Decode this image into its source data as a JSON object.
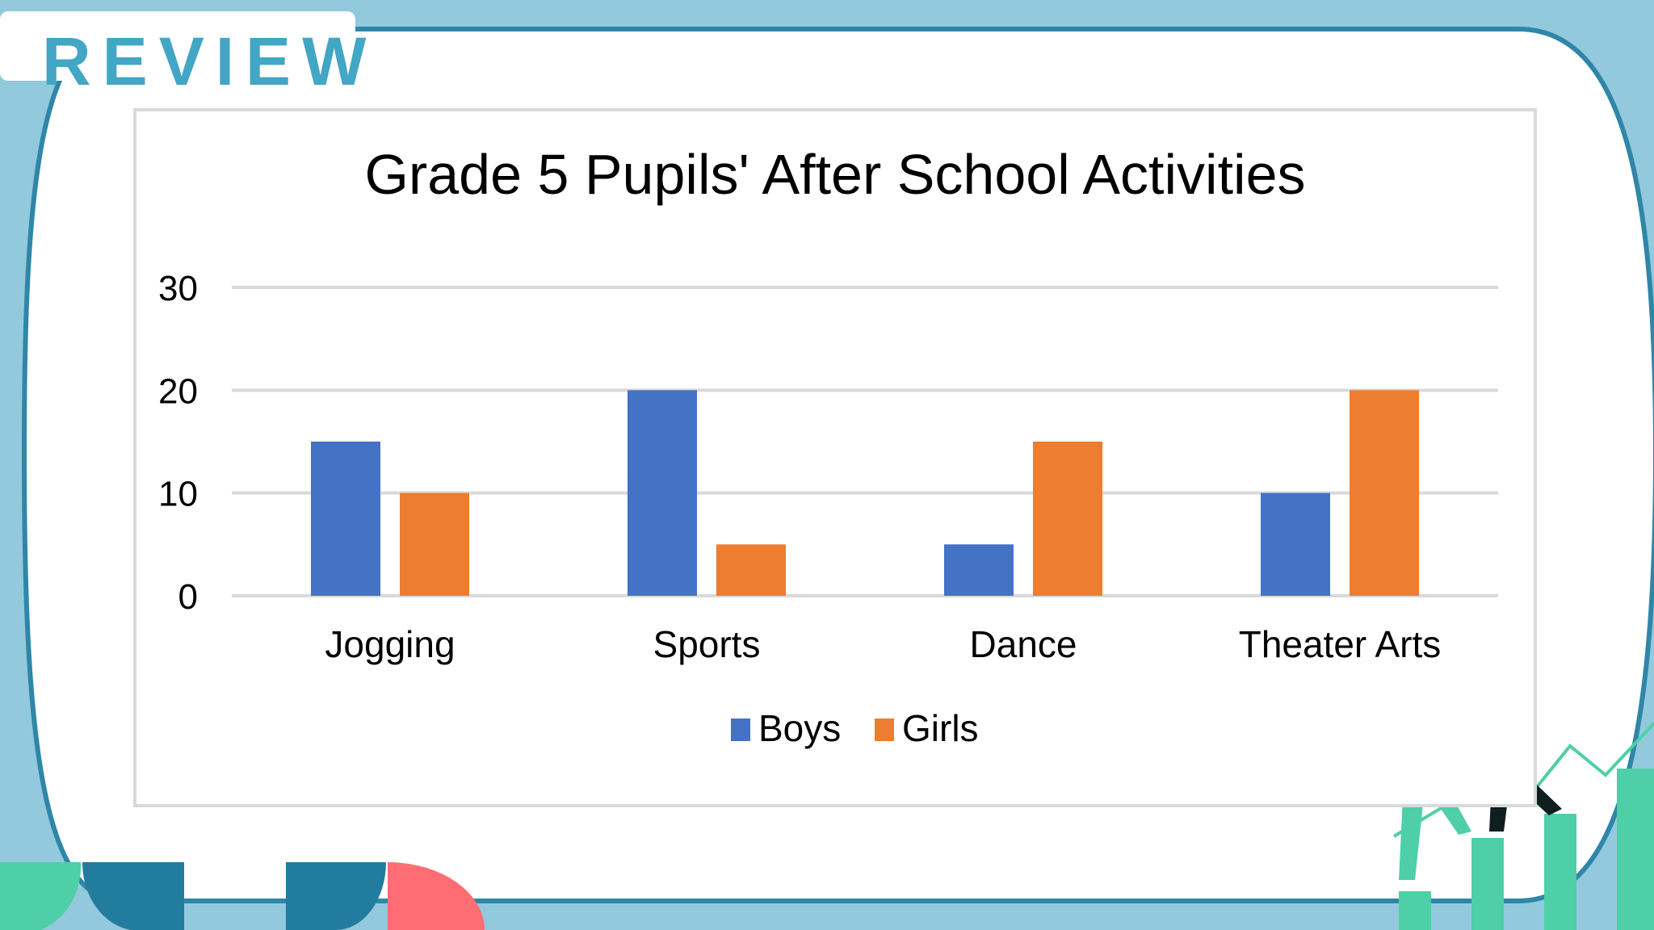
{
  "slide": {
    "header": "REVIEW",
    "colors": {
      "background": "#93c9dc",
      "frame": "#2f86a8",
      "header_text": "#42a6c5",
      "decor_teal": "#4ecfa8",
      "decor_blue": "#227c9d",
      "decor_coral": "#fe6d73"
    }
  },
  "chart_data": {
    "type": "bar",
    "title": "Grade 5 Pupils' After School Activities",
    "categories": [
      "Jogging",
      "Sports",
      "Dance",
      "Theater Arts"
    ],
    "series": [
      {
        "name": "Boys",
        "values": [
          15,
          20,
          5,
          10
        ],
        "color": "#4472c4"
      },
      {
        "name": "Girls",
        "values": [
          10,
          5,
          15,
          20
        ],
        "color": "#ed7d31"
      }
    ],
    "ylim": [
      0,
      30
    ],
    "yticks": [
      "0",
      "10",
      "20",
      "30"
    ],
    "xlabel": "",
    "ylabel": "",
    "grid": true,
    "legend": "bottom"
  }
}
